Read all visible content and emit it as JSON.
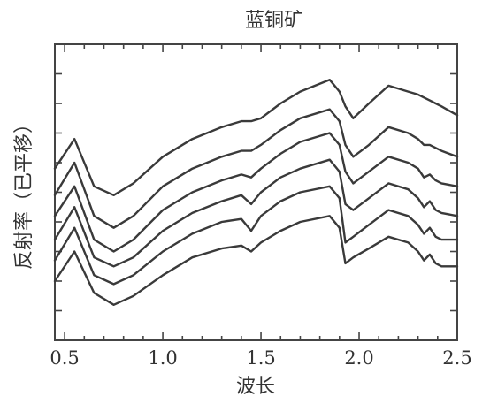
{
  "chart_data": {
    "type": "line",
    "title": "蓝铜矿",
    "xlabel": "波长",
    "ylabel": "反射率（已平移）",
    "xlim": [
      0.45,
      2.5
    ],
    "ylim": [
      0,
      1
    ],
    "xticks": [
      0.5,
      1.0,
      1.5,
      2.0,
      2.5
    ],
    "xtick_labels": [
      "0.5",
      "1.0",
      "1.5",
      "2.0",
      "2.5"
    ],
    "yticks": [
      0.1,
      0.2,
      0.3,
      0.4,
      0.5,
      0.6,
      0.7,
      0.8,
      0.9
    ],
    "grid": false,
    "legend": "none",
    "x": [
      0.45,
      0.55,
      0.65,
      0.75,
      0.85,
      1.0,
      1.15,
      1.3,
      1.4,
      1.45,
      1.5,
      1.6,
      1.7,
      1.85,
      1.9,
      1.93,
      1.97,
      2.05,
      2.15,
      2.25,
      2.3,
      2.33,
      2.36,
      2.39,
      2.42,
      2.5
    ],
    "series": [
      {
        "values": [
          0.58,
          0.68,
          0.52,
          0.49,
          0.53,
          0.62,
          0.68,
          0.72,
          0.74,
          0.74,
          0.75,
          0.8,
          0.84,
          0.88,
          0.84,
          0.79,
          0.75,
          0.8,
          0.86,
          0.84,
          0.83,
          0.82,
          0.81,
          0.8,
          0.79,
          0.76
        ]
      },
      {
        "values": [
          0.49,
          0.6,
          0.42,
          0.38,
          0.42,
          0.52,
          0.58,
          0.62,
          0.64,
          0.64,
          0.66,
          0.71,
          0.75,
          0.78,
          0.74,
          0.66,
          0.62,
          0.66,
          0.72,
          0.7,
          0.68,
          0.66,
          0.66,
          0.65,
          0.64,
          0.62
        ]
      },
      {
        "values": [
          0.42,
          0.52,
          0.34,
          0.3,
          0.34,
          0.44,
          0.5,
          0.54,
          0.56,
          0.55,
          0.58,
          0.63,
          0.67,
          0.7,
          0.66,
          0.57,
          0.53,
          0.57,
          0.62,
          0.6,
          0.58,
          0.55,
          0.56,
          0.54,
          0.53,
          0.52
        ]
      },
      {
        "values": [
          0.34,
          0.45,
          0.28,
          0.25,
          0.28,
          0.37,
          0.43,
          0.47,
          0.49,
          0.46,
          0.5,
          0.55,
          0.58,
          0.61,
          0.57,
          0.46,
          0.44,
          0.48,
          0.53,
          0.51,
          0.48,
          0.45,
          0.47,
          0.44,
          0.43,
          0.42
        ]
      },
      {
        "values": [
          0.27,
          0.38,
          0.22,
          0.19,
          0.22,
          0.3,
          0.36,
          0.4,
          0.41,
          0.37,
          0.42,
          0.47,
          0.5,
          0.52,
          0.48,
          0.33,
          0.35,
          0.39,
          0.44,
          0.42,
          0.39,
          0.36,
          0.38,
          0.35,
          0.34,
          0.34
        ]
      },
      {
        "values": [
          0.2,
          0.3,
          0.16,
          0.12,
          0.15,
          0.22,
          0.28,
          0.31,
          0.32,
          0.3,
          0.33,
          0.37,
          0.4,
          0.42,
          0.38,
          0.26,
          0.28,
          0.31,
          0.35,
          0.33,
          0.3,
          0.27,
          0.29,
          0.26,
          0.25,
          0.25
        ]
      }
    ]
  }
}
